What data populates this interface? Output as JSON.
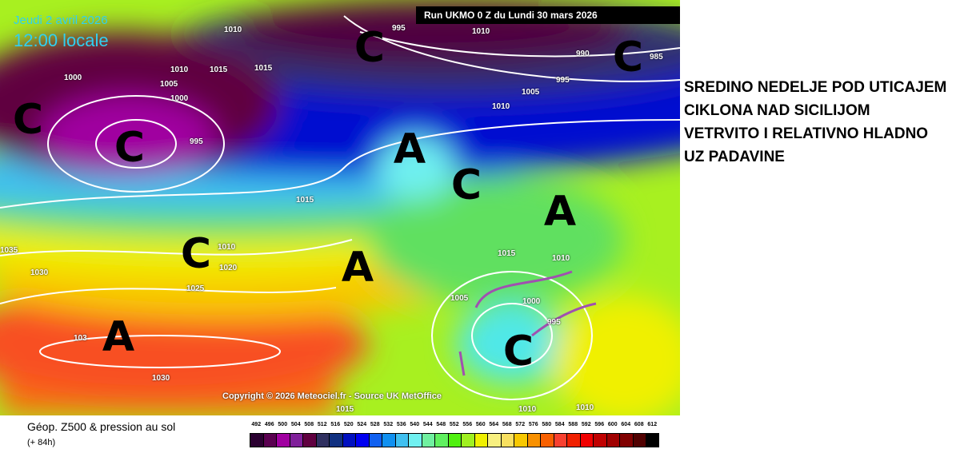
{
  "header": {
    "date": "Jeudi 2 avril 2026",
    "time": "12:00 locale",
    "run": "Run UKMO 0 Z du Lundi 30 mars 2026"
  },
  "copyright": "Copyright © 2026 Meteociel.fr - Source UK MetOffice",
  "annotation": "SREDINO NEDELJE POD UTICAJEM CIKLONA NAD SICILIJOM VETRVITO I RELATIVNO HLADNO UZ PADAVINE",
  "footer": {
    "title": "Géop. Z500 & pression au sol",
    "subtitle": "(+ 84h)"
  },
  "systems": [
    {
      "label": "C",
      "type": "low"
    },
    {
      "label": "C",
      "type": "low"
    },
    {
      "label": "C",
      "type": "low"
    },
    {
      "label": "C",
      "type": "low"
    },
    {
      "label": "A",
      "type": "high"
    },
    {
      "label": "C",
      "type": "low"
    },
    {
      "label": "A",
      "type": "high"
    },
    {
      "label": "C",
      "type": "low"
    },
    {
      "label": "A",
      "type": "high"
    },
    {
      "label": "A",
      "type": "high"
    },
    {
      "label": "C",
      "type": "low"
    }
  ],
  "isobars": [
    "1010",
    "995",
    "990",
    "985",
    "995",
    "1010",
    "1015",
    "1015",
    "1010",
    "1005",
    "1000",
    "1000",
    "995",
    "1005",
    "1010",
    "1015",
    "1035",
    "1030",
    "1010",
    "1020",
    "1025",
    "1015",
    "1010",
    "1005",
    "1000",
    "995",
    "1030",
    "103",
    "1010",
    "1010",
    "1015"
  ],
  "legend": {
    "values": [
      "492",
      "496",
      "500",
      "504",
      "508",
      "512",
      "516",
      "520",
      "524",
      "528",
      "532",
      "536",
      "540",
      "544",
      "548",
      "552",
      "556",
      "560",
      "564",
      "568",
      "572",
      "576",
      "580",
      "584",
      "588",
      "592",
      "596",
      "600",
      "604",
      "608",
      "612"
    ],
    "colors": [
      "#2a0030",
      "#5a0050",
      "#a000a0",
      "#80209a",
      "#600040",
      "#303060",
      "#103080",
      "#0010c0",
      "#0000f0",
      "#1060f0",
      "#1090f0",
      "#40c0f0",
      "#70f0f0",
      "#70f0a0",
      "#60f060",
      "#50f010",
      "#a0f020",
      "#f0f000",
      "#f8f080",
      "#f8e060",
      "#f8c800",
      "#f89000",
      "#f86000",
      "#f84030",
      "#f02000",
      "#f00000",
      "#c00000",
      "#a00000",
      "#800000",
      "#500000",
      "#000000"
    ]
  }
}
